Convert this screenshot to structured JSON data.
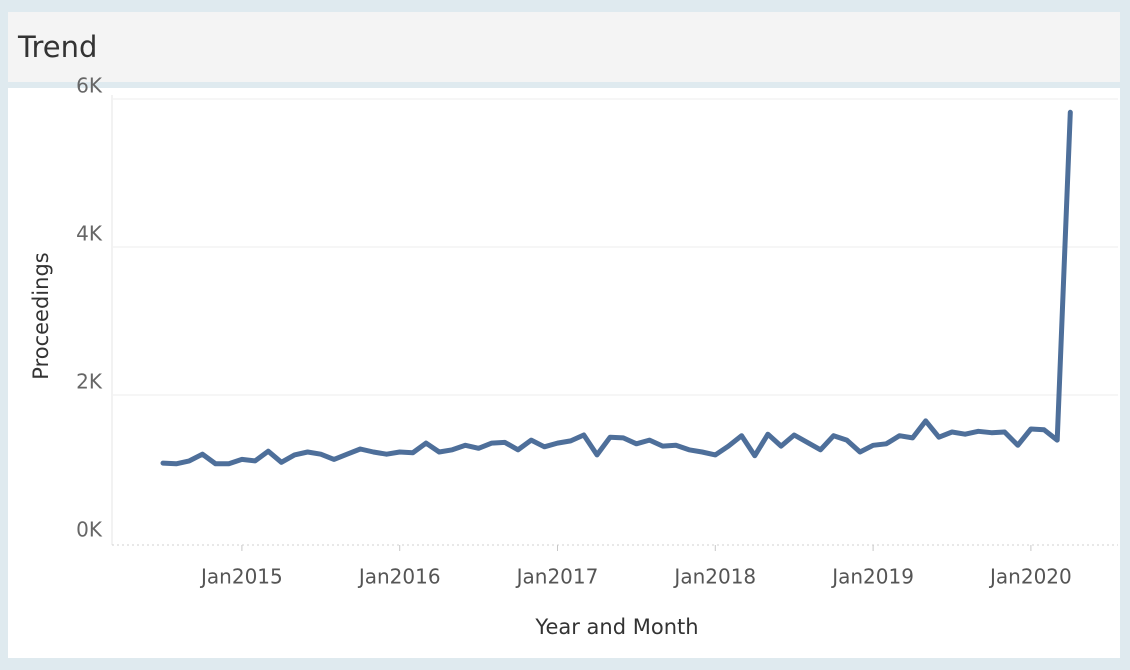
{
  "chart_data": {
    "type": "line",
    "title": "Trend",
    "x_label": "Year and Month",
    "y_label": "Proceedings",
    "color": "#4e6f9a",
    "x": [
      "2014-07",
      "2014-08",
      "2014-09",
      "2014-10",
      "2014-11",
      "2014-12",
      "2015-01",
      "2015-02",
      "2015-03",
      "2015-04",
      "2015-05",
      "2015-06",
      "2015-07",
      "2015-08",
      "2015-09",
      "2015-10",
      "2015-11",
      "2015-12",
      "2016-01",
      "2016-02",
      "2016-03",
      "2016-04",
      "2016-05",
      "2016-06",
      "2016-07",
      "2016-08",
      "2016-09",
      "2016-10",
      "2016-11",
      "2016-12",
      "2017-01",
      "2017-02",
      "2017-03",
      "2017-04",
      "2017-05",
      "2017-06",
      "2017-07",
      "2017-08",
      "2017-09",
      "2017-10",
      "2017-11",
      "2017-12",
      "2018-01",
      "2018-02",
      "2018-03",
      "2018-04",
      "2018-05",
      "2018-06",
      "2018-07",
      "2018-08",
      "2018-09",
      "2018-10",
      "2018-11",
      "2018-12",
      "2019-01",
      "2019-02",
      "2019-03",
      "2019-04",
      "2019-05",
      "2019-06",
      "2019-07",
      "2019-08",
      "2019-09",
      "2019-10",
      "2019-11",
      "2019-12",
      "2020-01",
      "2020-02",
      "2020-03",
      "2020-04"
    ],
    "values": [
      1080,
      1070,
      1110,
      1200,
      1070,
      1070,
      1130,
      1110,
      1240,
      1090,
      1190,
      1230,
      1200,
      1130,
      1200,
      1270,
      1230,
      1200,
      1230,
      1220,
      1350,
      1230,
      1260,
      1320,
      1280,
      1350,
      1360,
      1260,
      1390,
      1300,
      1350,
      1380,
      1460,
      1190,
      1430,
      1420,
      1340,
      1390,
      1310,
      1320,
      1260,
      1230,
      1190,
      1310,
      1450,
      1180,
      1470,
      1310,
      1460,
      1360,
      1260,
      1450,
      1390,
      1230,
      1320,
      1340,
      1450,
      1420,
      1650,
      1430,
      1500,
      1470,
      1510,
      1490,
      1500,
      1320,
      1540,
      1530,
      1390,
      5820
    ],
    "ylim": [
      0,
      6000
    ],
    "yticks": [
      {
        "value": 0,
        "label": "0K"
      },
      {
        "value": 2000,
        "label": "2K"
      },
      {
        "value": 4000,
        "label": "4K"
      },
      {
        "value": 6000,
        "label": "6K"
      }
    ],
    "xticks": [
      {
        "value": "2015-01",
        "label": "Jan2015"
      },
      {
        "value": "2016-01",
        "label": "Jan2016"
      },
      {
        "value": "2017-01",
        "label": "Jan2017"
      },
      {
        "value": "2018-01",
        "label": "Jan2018"
      },
      {
        "value": "2019-01",
        "label": "Jan2019"
      },
      {
        "value": "2020-01",
        "label": "Jan2020"
      }
    ],
    "grid": true
  }
}
